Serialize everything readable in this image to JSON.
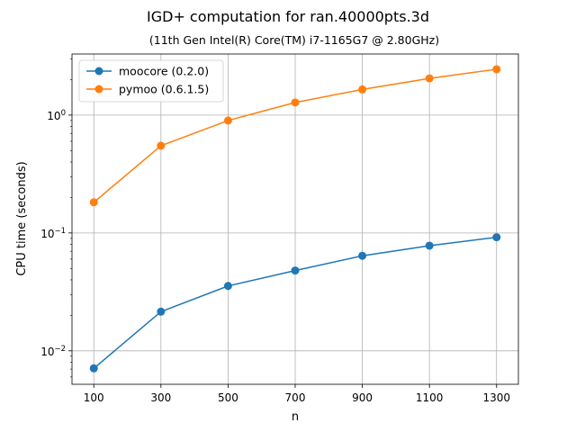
{
  "chart_data": {
    "type": "line",
    "title": "IGD+ computation for ran.40000pts.3d",
    "subtitle": "(11th Gen Intel(R) Core(TM) i7-1165G7 @ 2.80GHz)",
    "xlabel": "n",
    "ylabel": "CPU time (seconds)",
    "x": [
      100,
      300,
      500,
      700,
      900,
      1100,
      1300
    ],
    "xlim": [
      35,
      1365
    ],
    "ylim": [
      0.0052,
      3.3
    ],
    "yscale": "log",
    "ytick_values": [
      0.01,
      0.1,
      1
    ],
    "ytick_exponents": [
      "−2",
      "−1",
      "0"
    ],
    "ytick_base": "10",
    "grid": true,
    "legend_position": "top-left",
    "series": [
      {
        "name": "moocore (0.2.0)",
        "color": "#1f77b4",
        "values": [
          0.0071,
          0.0215,
          0.0355,
          0.048,
          0.064,
          0.078,
          0.092
        ]
      },
      {
        "name": "pymoo (0.6.1.5)",
        "color": "#ff7f0e",
        "values": [
          0.182,
          0.55,
          0.9,
          1.28,
          1.65,
          2.05,
          2.45
        ]
      }
    ]
  }
}
